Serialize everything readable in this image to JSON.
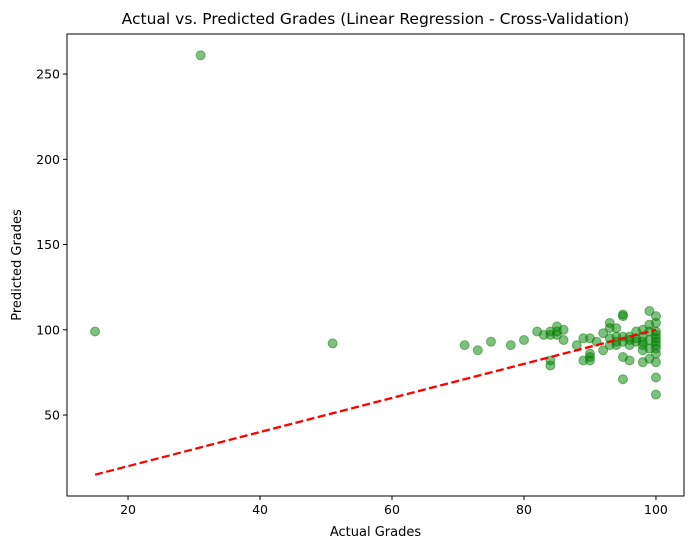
{
  "chart_data": {
    "type": "scatter",
    "title": "Actual vs. Predicted Grades (Linear Regression - Cross-Validation)",
    "xlabel": "Actual Grades",
    "ylabel": "Predicted Grades",
    "xlim": [
      10.75,
      104.25
    ],
    "ylim": [
      2.5,
      273.5
    ],
    "xticks": [
      20,
      40,
      60,
      80,
      100
    ],
    "yticks": [
      50,
      100,
      150,
      200,
      250
    ],
    "grid": false,
    "colors": {
      "points": "#008000",
      "line": "#ff0000"
    },
    "series": [
      {
        "kind": "scatter",
        "x": [
          15,
          31,
          51,
          71,
          73,
          75,
          78,
          80,
          82,
          83,
          84,
          84,
          84,
          84,
          85,
          85,
          85,
          86,
          86,
          88,
          89,
          89,
          90,
          90,
          90,
          90,
          91,
          92,
          92,
          93,
          93,
          93,
          93,
          94,
          94,
          94,
          94,
          95,
          95,
          95,
          95,
          95,
          95,
          96,
          96,
          96,
          96,
          97,
          97,
          97,
          98,
          98,
          98,
          98,
          98,
          98,
          99,
          99,
          99,
          99,
          99,
          99,
          100,
          100,
          100,
          100,
          100,
          100,
          100,
          100,
          100,
          100,
          100,
          100
        ],
        "y": [
          99,
          261,
          92,
          91,
          88,
          93,
          91,
          94,
          99,
          97,
          99,
          97,
          82,
          79,
          102,
          99,
          97,
          100,
          94,
          91,
          95,
          82,
          86,
          84,
          82,
          95,
          93,
          98,
          88,
          104,
          101,
          95,
          91,
          101,
          96,
          93,
          91,
          109,
          108,
          96,
          93,
          84,
          71,
          96,
          94,
          91,
          82,
          99,
          95,
          93,
          100,
          96,
          93,
          91,
          88,
          81,
          111,
          103,
          99,
          94,
          89,
          83,
          108,
          104,
          99,
          97,
          95,
          93,
          91,
          89,
          86,
          81,
          72,
          62
        ]
      },
      {
        "kind": "line",
        "style": "dashed",
        "x": [
          15,
          100
        ],
        "y": [
          15,
          100
        ]
      }
    ]
  }
}
